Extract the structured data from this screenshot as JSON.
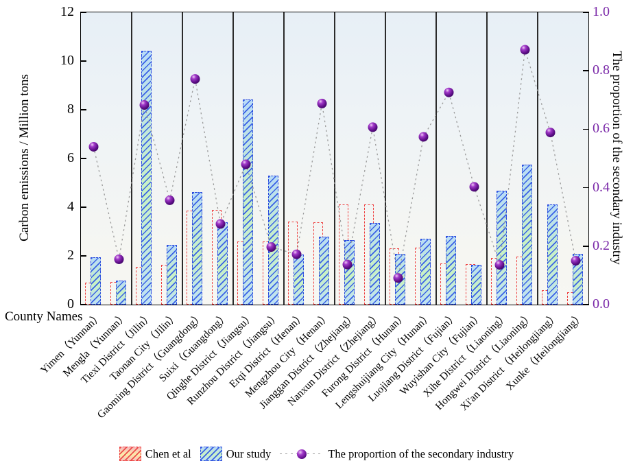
{
  "figure": {
    "x_axis_caption": "County Names"
  },
  "colors": {
    "chen_border": "#ee3e3e",
    "our_border": "#2a49dd",
    "right_axis_purple": "#7a28a8",
    "dot_purple": "#5c0d86",
    "connector_gray": "#9a9a9a",
    "plot_bg_top": "#e7eff6",
    "plot_bg_bottom": "#f7f7f3"
  },
  "chart_data": {
    "type": "bar",
    "title": "",
    "categories": [
      "Yimen（Yunnan）",
      "Mengla（Yunnan）",
      "Tiexi District（Jilin）",
      "Taonan City（Jilin）",
      "Gaoming District（Guangdong）",
      "Suixi（Guangdong）",
      "Qinghe District（Jiangsu）",
      "Runzhou District（Jiangsu）",
      "Erqi District（Henan）",
      "Mengzhou City（Henan）",
      "Jianggan District（Zhejiang）",
      "Nanxun District（Zhejiang）",
      "Furong District（Hunan）",
      "Lengshuijiang City（Hunan）",
      "Luojiang District（Fujian）",
      "Wuyishan City（Fujian）",
      "Xihe District（Liaoning）",
      "Hongwei District（Liaoning）",
      "Xi'an District（Heilongjiang）",
      "Xunke（Heilongjiang）"
    ],
    "series": [
      {
        "name": "Chen et al",
        "type": "bar",
        "axis": "left",
        "values": [
          0.9,
          0.92,
          1.55,
          1.63,
          3.85,
          3.9,
          2.6,
          2.6,
          3.42,
          3.37,
          4.1,
          4.12,
          2.3,
          2.35,
          1.7,
          1.67,
          1.93,
          1.97,
          0.59,
          0.51
        ]
      },
      {
        "name": "Our study",
        "type": "bar",
        "axis": "left",
        "values": [
          1.95,
          1.0,
          10.41,
          2.45,
          4.61,
          3.38,
          8.43,
          5.29,
          2.06,
          2.79,
          2.64,
          3.35,
          2.08,
          2.71,
          2.82,
          1.63,
          4.69,
          5.76,
          4.12,
          2.09
        ]
      },
      {
        "name": "The proportion of the secondary industry",
        "type": "scatter-line",
        "axis": "right",
        "values": [
          0.54,
          0.155,
          0.683,
          0.357,
          0.772,
          0.276,
          0.48,
          0.197,
          0.172,
          0.688,
          0.137,
          0.607,
          0.091,
          0.574,
          0.726,
          0.403,
          0.136,
          0.872,
          0.589,
          0.15
        ]
      }
    ],
    "left_axis": {
      "label": "Carbon emissions / Million tons",
      "min": 0,
      "max": 12,
      "ticks": [
        0,
        2,
        4,
        6,
        8,
        10,
        12
      ]
    },
    "right_axis": {
      "label": "The proportion of the secondary industry",
      "min": 0.0,
      "max": 1.0,
      "ticks": [
        "0.0",
        "0.2",
        "0.4",
        "0.6",
        "0.8",
        "1.0"
      ]
    },
    "x_axis": {
      "label": "County Names",
      "tick_rotation_deg": 45
    },
    "group_size": 2,
    "grid": false,
    "legend_position": "bottom-center",
    "legend": [
      "Chen et al",
      "Our study",
      "The proportion of the secondary industry"
    ]
  }
}
